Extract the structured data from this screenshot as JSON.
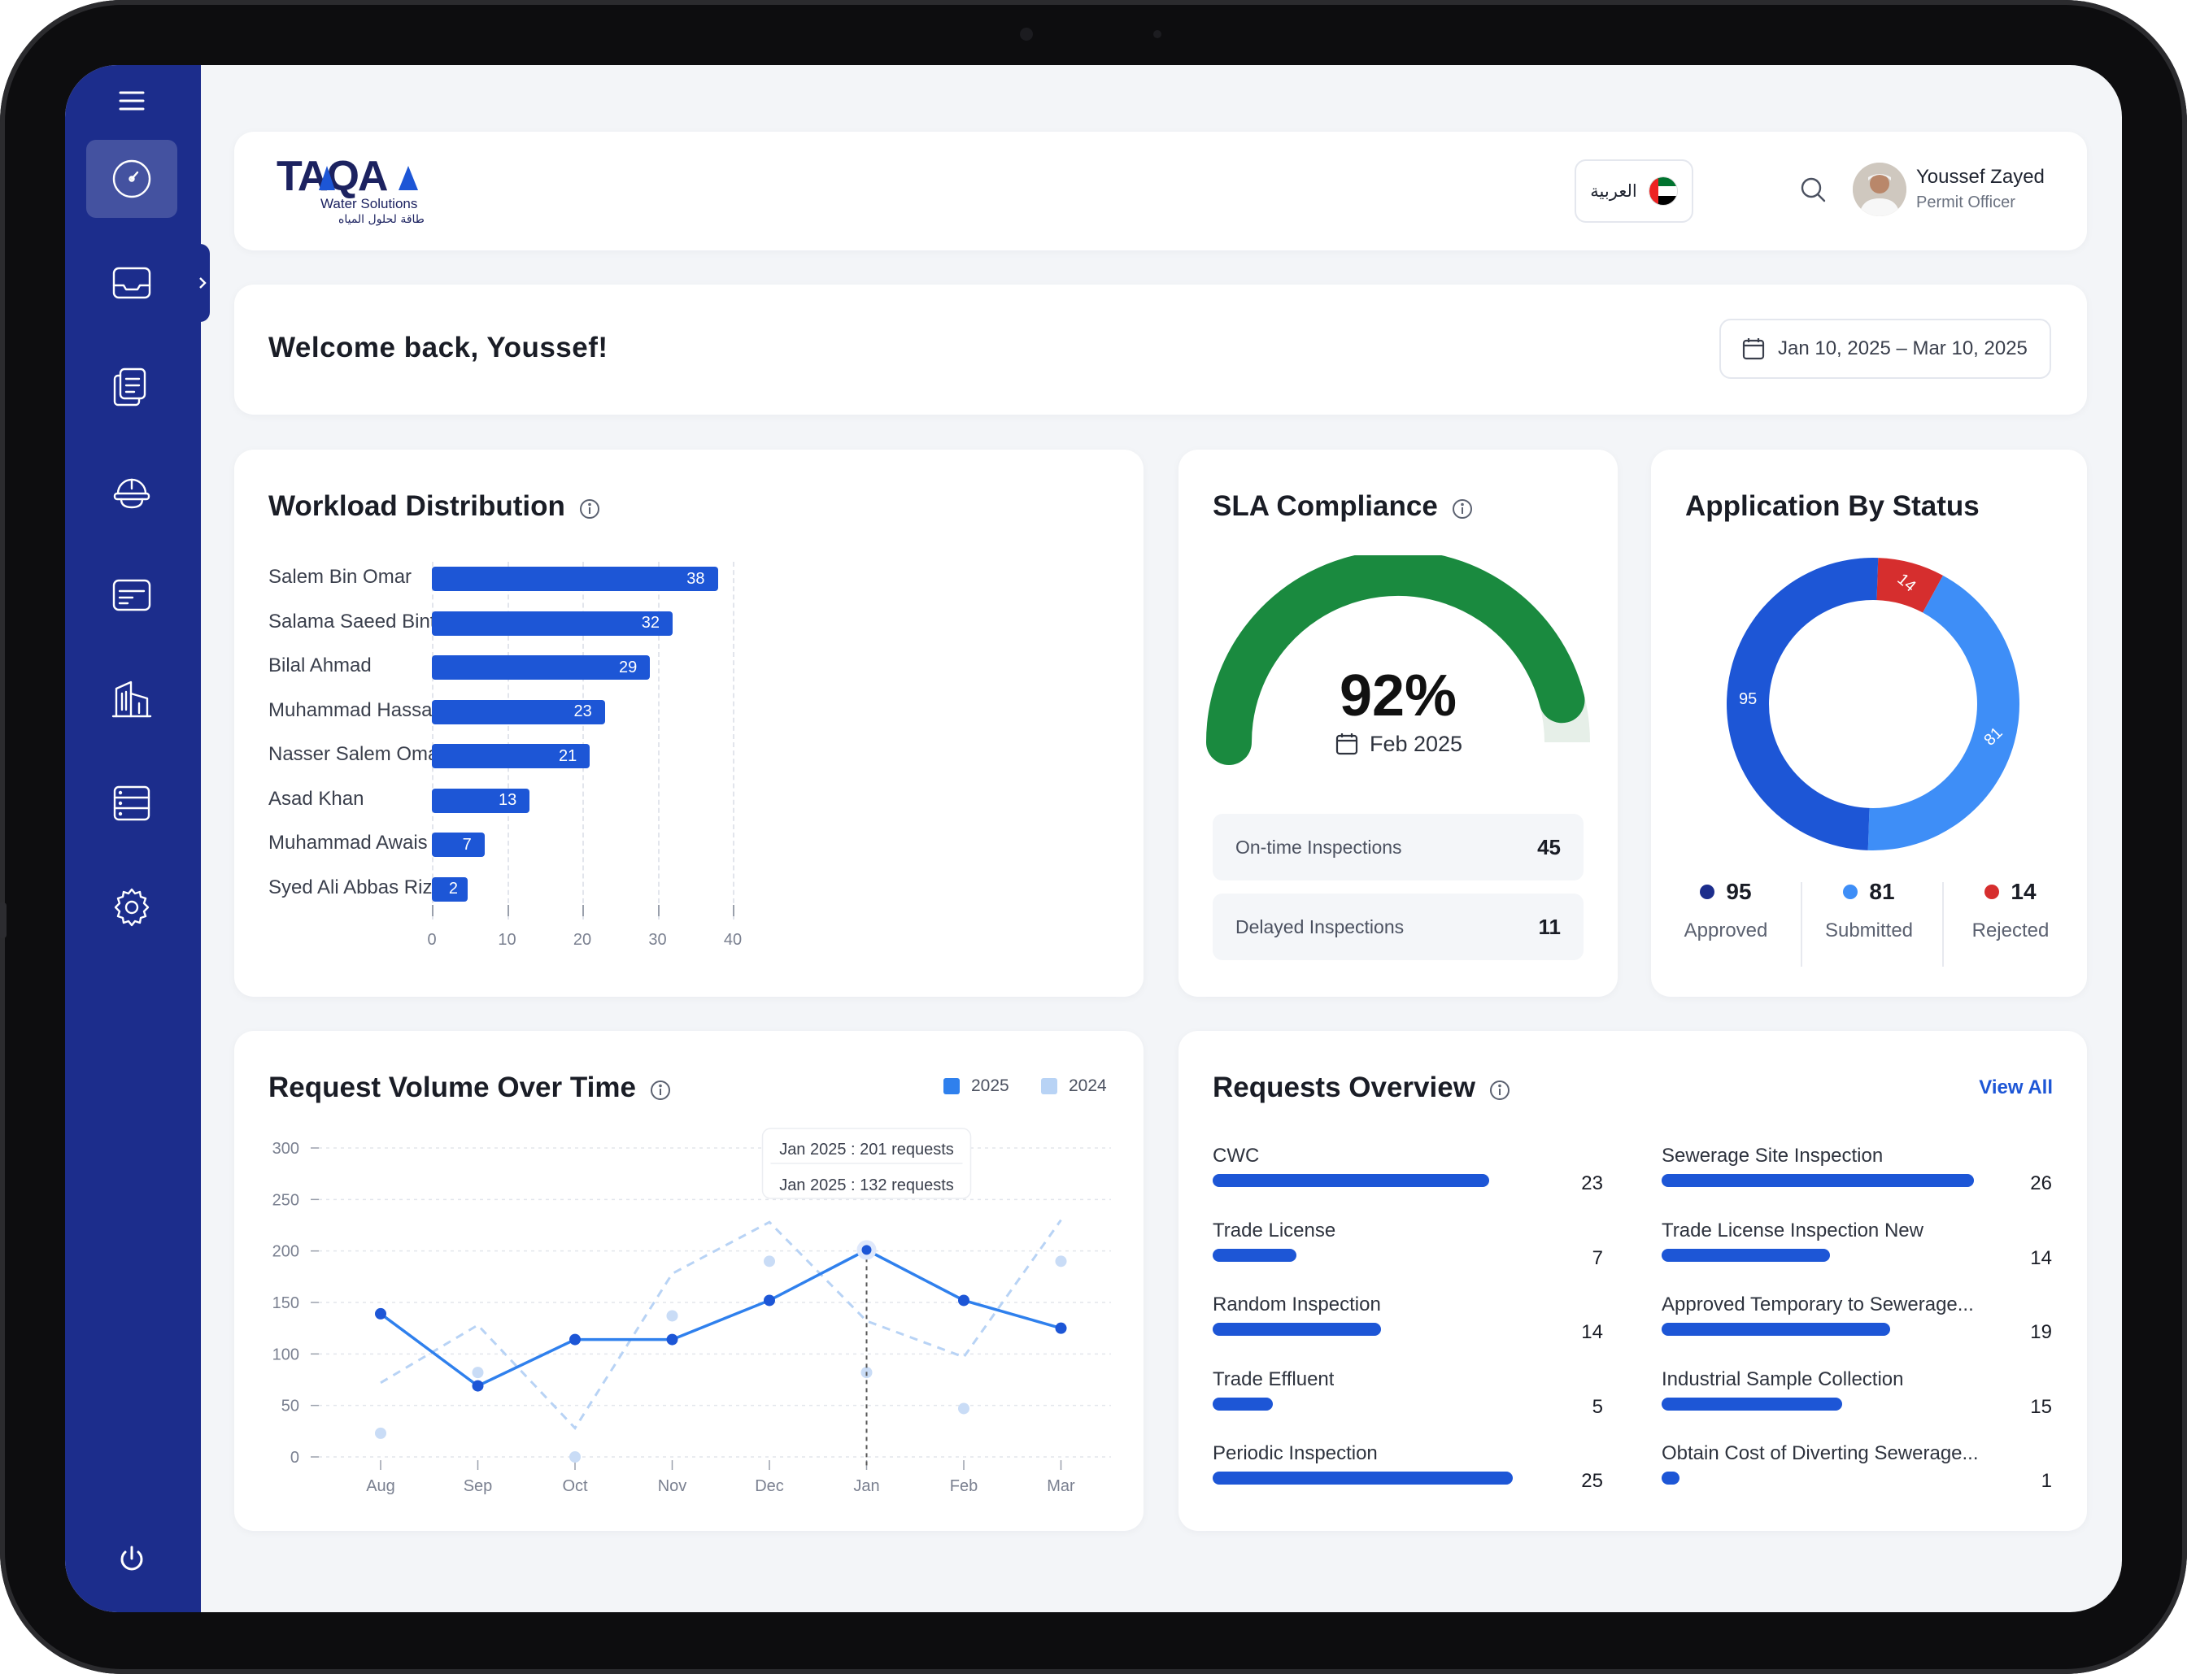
{
  "colors": {
    "sidebar": "#1c2d8c",
    "primary": "#1d56d6",
    "series_2025": "#2f80ed",
    "series_2024": "#b8d3f5",
    "gauge_fill": "#1a8a3f",
    "gauge_track": "#e6efe8",
    "approved": "#1d56d6",
    "submitted": "#3e8ef7",
    "rejected": "#d62e2e"
  },
  "sidebar": {
    "menu_icon": "hamburger-icon",
    "items": [
      {
        "icon": "speedometer-icon",
        "active": true
      },
      {
        "icon": "inbox-icon",
        "active": false
      },
      {
        "icon": "documents-icon",
        "active": false
      },
      {
        "icon": "hard-hat-icon",
        "active": false
      },
      {
        "icon": "card-icon",
        "active": false
      },
      {
        "icon": "building-icon",
        "active": false
      },
      {
        "icon": "server-list-icon",
        "active": false
      },
      {
        "icon": "gear-icon",
        "active": false
      }
    ],
    "logout_icon": "power-icon"
  },
  "header": {
    "logo_text": "TAQA",
    "logo_sub_en": "Water Solutions",
    "logo_sub_ar": "طاقة لحلول المياه",
    "language_label": "العربية",
    "user": {
      "name": "Youssef Zayed",
      "role": "Permit Officer"
    }
  },
  "welcome": {
    "title": "Welcome back, Youssef!",
    "date_range": "Jan 10, 2025 – Mar 10, 2025"
  },
  "workload": {
    "title": "Workload Distribution",
    "chart_data": {
      "type": "bar",
      "orientation": "horizontal",
      "categories": [
        "Salem Bin Omar",
        "Salama Saeed Bint Mansoor",
        "Bilal Ahmad",
        "Muhammad Hassan Iqbal",
        "Nasser Salem Omar",
        "Asad Khan",
        "Muhammad Awais Javed",
        "Syed Ali Abbas Rizvi"
      ],
      "values": [
        38,
        32,
        29,
        23,
        21,
        13,
        7,
        2
      ],
      "xlim": [
        0,
        40
      ],
      "xticks": [
        "0",
        "10",
        "20",
        "30",
        "40"
      ],
      "grid": true
    }
  },
  "sla": {
    "title": "SLA Compliance",
    "value": "92%",
    "fraction": 0.92,
    "period": "Feb 2025",
    "rows": [
      {
        "label": "On-time Inspections",
        "value": "45"
      },
      {
        "label": "Delayed Inspections",
        "value": "11"
      }
    ]
  },
  "status": {
    "title": "Application By Status",
    "chart_data": {
      "type": "pie",
      "donut": true,
      "labels": [
        "Approved",
        "Submitted",
        "Rejected"
      ],
      "values": [
        95,
        81,
        14
      ]
    },
    "legend": [
      {
        "value": "95",
        "label": "Approved"
      },
      {
        "value": "81",
        "label": "Submitted"
      },
      {
        "value": "14",
        "label": "Rejected"
      }
    ]
  },
  "volume": {
    "title": "Request Volume Over Time",
    "chart_data": {
      "type": "line",
      "categories": [
        "Aug",
        "Sep",
        "Oct",
        "Nov",
        "Dec",
        "Jan",
        "Feb",
        "Mar"
      ],
      "series": [
        {
          "name": "2025",
          "values": [
            139,
            69,
            114,
            114,
            152,
            201,
            152,
            125
          ]
        },
        {
          "name": "2024",
          "values": [
            72,
            128,
            28,
            178,
            228,
            132,
            97,
            230
          ]
        }
      ],
      "scatter_2024": [
        23,
        82,
        0,
        137,
        190,
        82,
        47,
        190
      ],
      "ylim": [
        0,
        300
      ],
      "yticks": [
        "300",
        "250",
        "200",
        "150",
        "100",
        "50",
        "0"
      ],
      "grid": true,
      "legend": "top-right"
    },
    "tooltip": [
      "Jan 2025 : 201 requests",
      "Jan 2025 : 132 requests"
    ]
  },
  "overview": {
    "title": "Requests Overview",
    "view_all": "View All",
    "max_value": 26,
    "left": [
      {
        "label": "CWC",
        "value": 23
      },
      {
        "label": "Trade License",
        "value": 7
      },
      {
        "label": "Random Inspection",
        "value": 14
      },
      {
        "label": "Trade Effluent",
        "value": 5
      },
      {
        "label": "Periodic Inspection",
        "value": 25
      }
    ],
    "right": [
      {
        "label": "Sewerage Site Inspection",
        "value": 26
      },
      {
        "label": "Trade License Inspection New",
        "value": 14
      },
      {
        "label": "Approved Temporary to Sewerage...",
        "value": 19
      },
      {
        "label": "Industrial Sample Collection",
        "value": 15
      },
      {
        "label": "Obtain Cost of Diverting Sewerage...",
        "value": 1
      }
    ]
  }
}
